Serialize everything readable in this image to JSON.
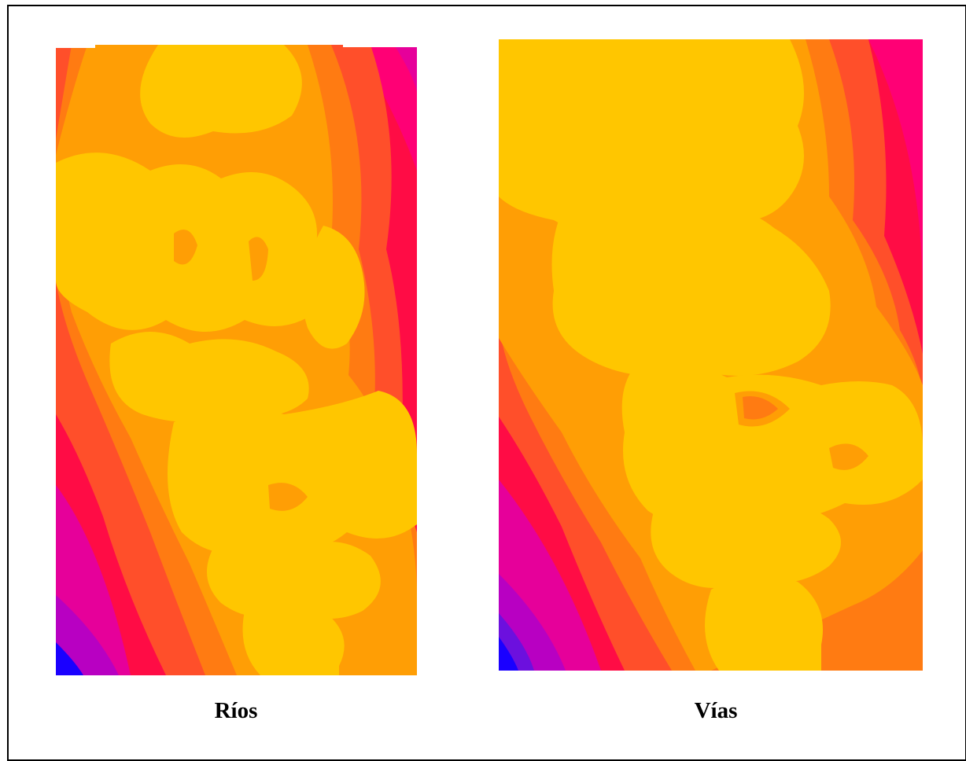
{
  "panels": [
    {
      "id": "rios",
      "caption": "Ríos"
    },
    {
      "id": "vias",
      "caption": "Vías"
    }
  ],
  "palette": {
    "band_1": "#ffc600",
    "band_2": "#ff9e05",
    "band_3": "#ff7b12",
    "band_4": "#ff4f2a",
    "band_5": "#ff0c45",
    "band_6": "#ff0075",
    "band_7": "#e6009a",
    "band_8": "#b800c2",
    "band_9": "#6c10de",
    "band_10": "#1a00ff",
    "border": "#000000",
    "background": "#ffffff"
  }
}
